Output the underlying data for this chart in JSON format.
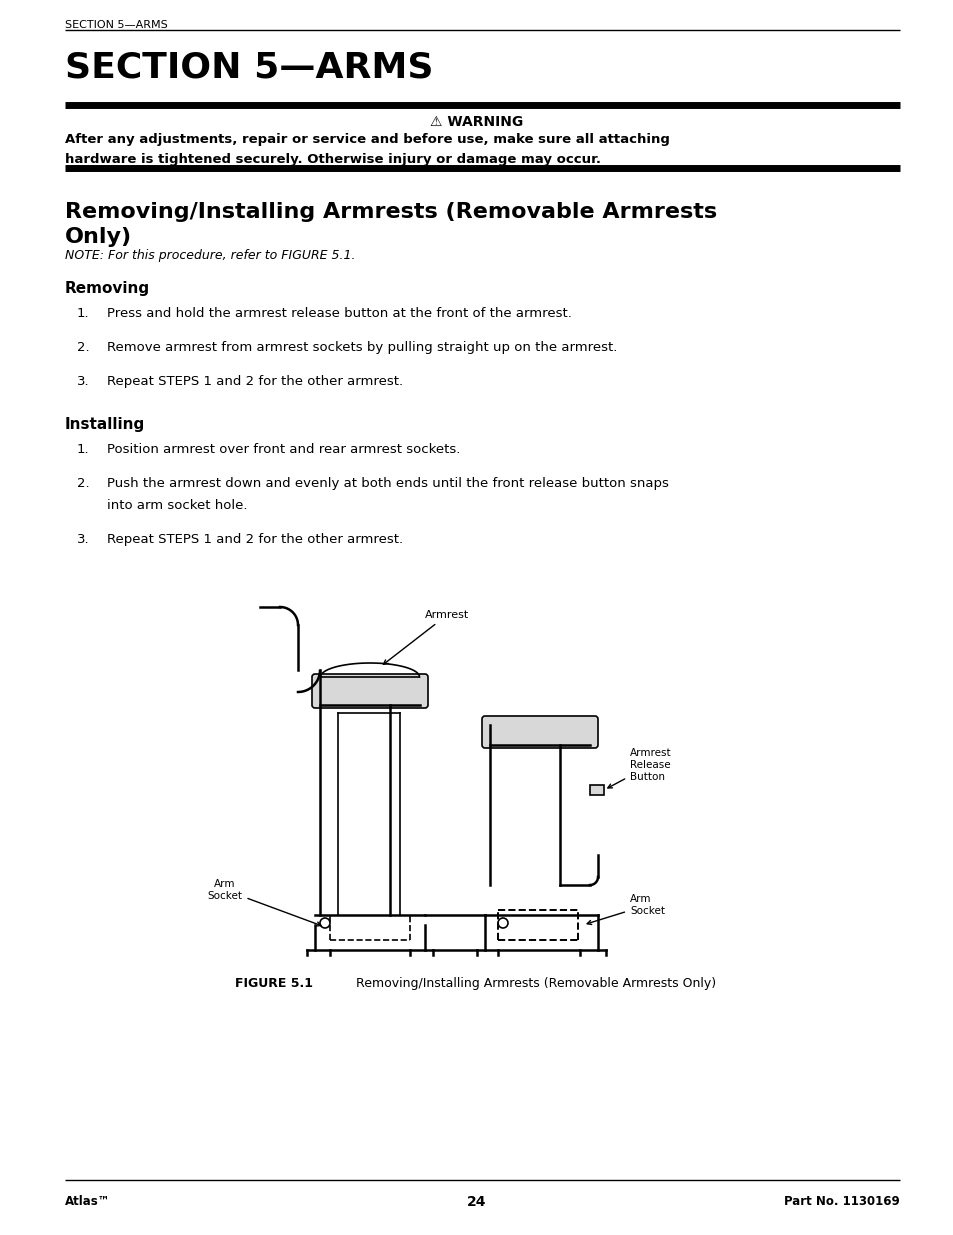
{
  "bg_color": "#ffffff",
  "text_color": "#000000",
  "page_width": 9.54,
  "page_height": 12.35,
  "header_text": "SECTION 5—ARMS",
  "title_text": "SECTION 5—ARMS",
  "warning_title": "⚠ WARNING",
  "warning_body1": "After any adjustments, repair or service and before use, make sure all attaching",
  "warning_body2": "hardware is tightened securely. Otherwise injury or damage may occur.",
  "section_heading_line1": "Removing/Installing Armrests (Removable Armrests",
  "section_heading_line2": "Only)",
  "note_text": "NOTE: For this procedure, refer to FIGURE 5.1.",
  "removing_heading": "Removing",
  "removing_items": [
    "Press and hold the armrest release button at the front of the armrest.",
    "Remove armrest from armrest sockets by pulling straight up on the armrest.",
    "Repeat STEPS 1 and 2 for the other armrest."
  ],
  "installing_heading": "Installing",
  "installing_items": [
    "Position armrest over front and rear armrest sockets.",
    "Push the armrest down and evenly at both ends until the front release button snaps",
    "into arm socket hole.",
    "Repeat STEPS 1 and 2 for the other armrest."
  ],
  "footer_left": "Atlas™",
  "footer_center": "24",
  "footer_right": "Part No. 1130169"
}
